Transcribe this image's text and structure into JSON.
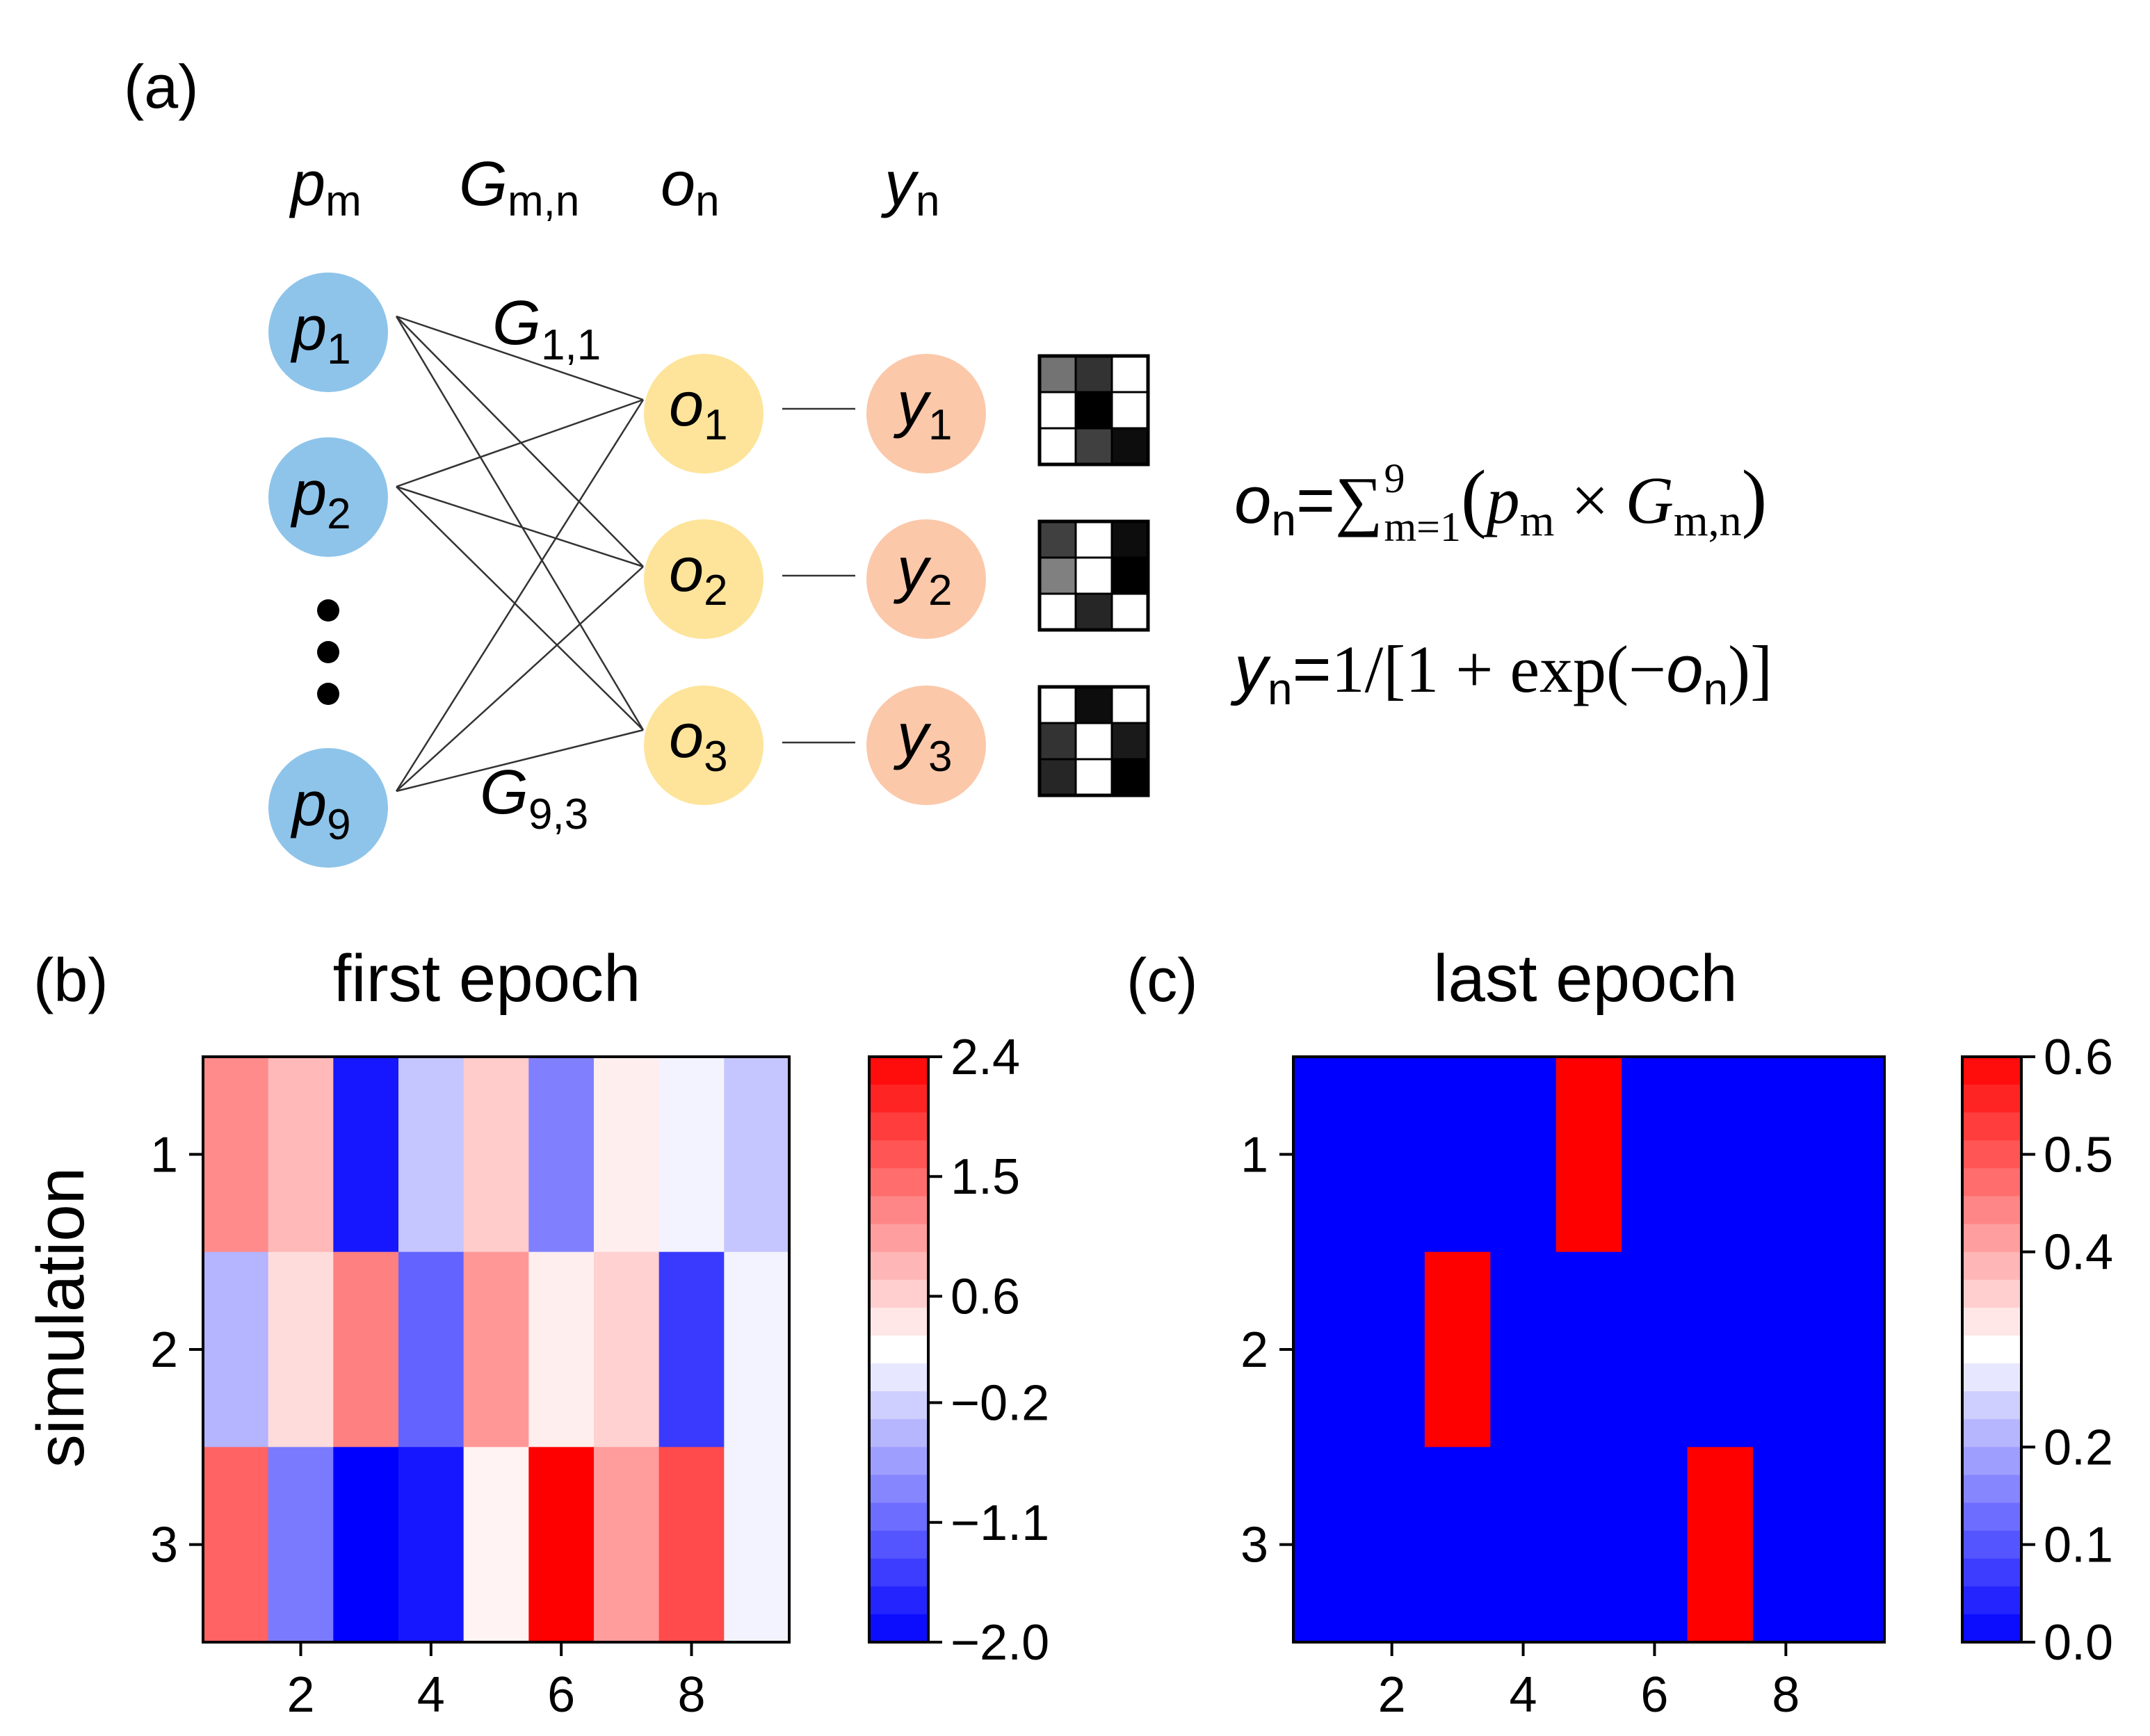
{
  "panel_a": {
    "label": "(a)",
    "headers": {
      "p": "p",
      "p_sub": "m",
      "G": "G",
      "G_sub": "m,n",
      "o": "o",
      "o_sub": "n",
      "y": "y",
      "y_sub": "n"
    },
    "input_nodes": [
      {
        "sym": "p",
        "sub": "1"
      },
      {
        "sym": "p",
        "sub": "2"
      },
      {
        "sym": "p",
        "sub": "9"
      }
    ],
    "output_nodes": [
      {
        "sym": "o",
        "sub": "1"
      },
      {
        "sym": "o",
        "sub": "2"
      },
      {
        "sym": "o",
        "sub": "3"
      }
    ],
    "activation_nodes": [
      {
        "sym": "y",
        "sub": "1"
      },
      {
        "sym": "y",
        "sub": "2"
      },
      {
        "sym": "y",
        "sub": "3"
      }
    ],
    "weight_label_top": {
      "sym": "G",
      "sub": "1,1"
    },
    "weight_label_bottom": {
      "sym": "G",
      "sub": "9,3"
    },
    "patterns": [
      [
        [
          0.45,
          0.2,
          1.0
        ],
        [
          1.0,
          0.0,
          1.0
        ],
        [
          1.0,
          0.25,
          0.05
        ]
      ],
      [
        [
          0.25,
          1.0,
          0.05
        ],
        [
          0.5,
          1.0,
          0.0
        ],
        [
          1.0,
          0.15,
          1.0
        ]
      ],
      [
        [
          1.0,
          0.05,
          1.0
        ],
        [
          0.2,
          1.0,
          0.1
        ],
        [
          0.15,
          1.0,
          0.0
        ]
      ]
    ],
    "equation1": {
      "lhs": "o",
      "lhs_sub": "n",
      "eq": "=",
      "sum": "∑",
      "sum_sub": "m=1",
      "sum_sup": "9",
      "open": "(",
      "p": "p",
      "p_sub": "m",
      "times": " × ",
      "G": "G",
      "G_sub": "m,n",
      "close": ")"
    },
    "equation2": {
      "lhs": "y",
      "lhs_sub": "n",
      "eq": "=",
      "mid": "1/[1 + exp(−",
      "o": "o",
      "o_sub": "n",
      "close": ")]"
    },
    "colors": {
      "input": "#8ec4ea",
      "output": "#fde49a",
      "activation": "#fbc8aa"
    }
  },
  "chart_data": [
    {
      "type": "heatmap",
      "panel_label": "(b)",
      "title": "first epoch",
      "ylabel": "simulation",
      "x": [
        1,
        2,
        3,
        4,
        5,
        6,
        7,
        8,
        9
      ],
      "y": [
        1,
        2,
        3
      ],
      "xticks": [
        "2",
        "4",
        "6",
        "8"
      ],
      "xtick_values": [
        2,
        4,
        6,
        8
      ],
      "yticks": [
        "1",
        "2",
        "3"
      ],
      "values": [
        [
          1.2,
          0.8,
          -1.8,
          -0.3,
          0.65,
          -0.9,
          0.35,
          0.1,
          -0.3
        ],
        [
          -0.45,
          0.5,
          1.3,
          -1.15,
          1.1,
          0.35,
          0.6,
          -1.5,
          0.1
        ],
        [
          1.55,
          -0.95,
          -2.0,
          -1.8,
          0.3,
          2.4,
          1.05,
          1.75,
          0.1
        ]
      ],
      "colorbar": {
        "min": -2.0,
        "max": 2.4,
        "center": 0.2,
        "ticks": [
          "2.4",
          "1.5",
          "0.6",
          "−0.2",
          "−1.1",
          "−2.0"
        ],
        "tick_values": [
          2.4,
          1.5,
          0.6,
          -0.2,
          -1.1,
          -2.0
        ]
      },
      "colormap": "bwr"
    },
    {
      "type": "heatmap",
      "panel_label": "(c)",
      "title": "last epoch",
      "x": [
        1,
        2,
        3,
        4,
        5,
        6,
        7,
        8,
        9
      ],
      "y": [
        1,
        2,
        3
      ],
      "xticks": [
        "2",
        "4",
        "6",
        "8"
      ],
      "xtick_values": [
        2,
        4,
        6,
        8
      ],
      "yticks": [
        "1",
        "2",
        "3"
      ],
      "values": [
        [
          0,
          0,
          0,
          0,
          0.6,
          0,
          0,
          0,
          0
        ],
        [
          0,
          0,
          0.6,
          0,
          0,
          0,
          0,
          0,
          0
        ],
        [
          0,
          0,
          0,
          0,
          0,
          0,
          0.6,
          0,
          0
        ]
      ],
      "colorbar": {
        "min": 0.0,
        "max": 0.6,
        "center": 0.3,
        "ticks": [
          "0.6",
          "0.5",
          "0.4",
          "0.2",
          "0.1",
          "0.0"
        ],
        "tick_values": [
          0.6,
          0.5,
          0.4,
          0.2,
          0.1,
          0.0
        ]
      },
      "colormap": "bwr"
    }
  ]
}
